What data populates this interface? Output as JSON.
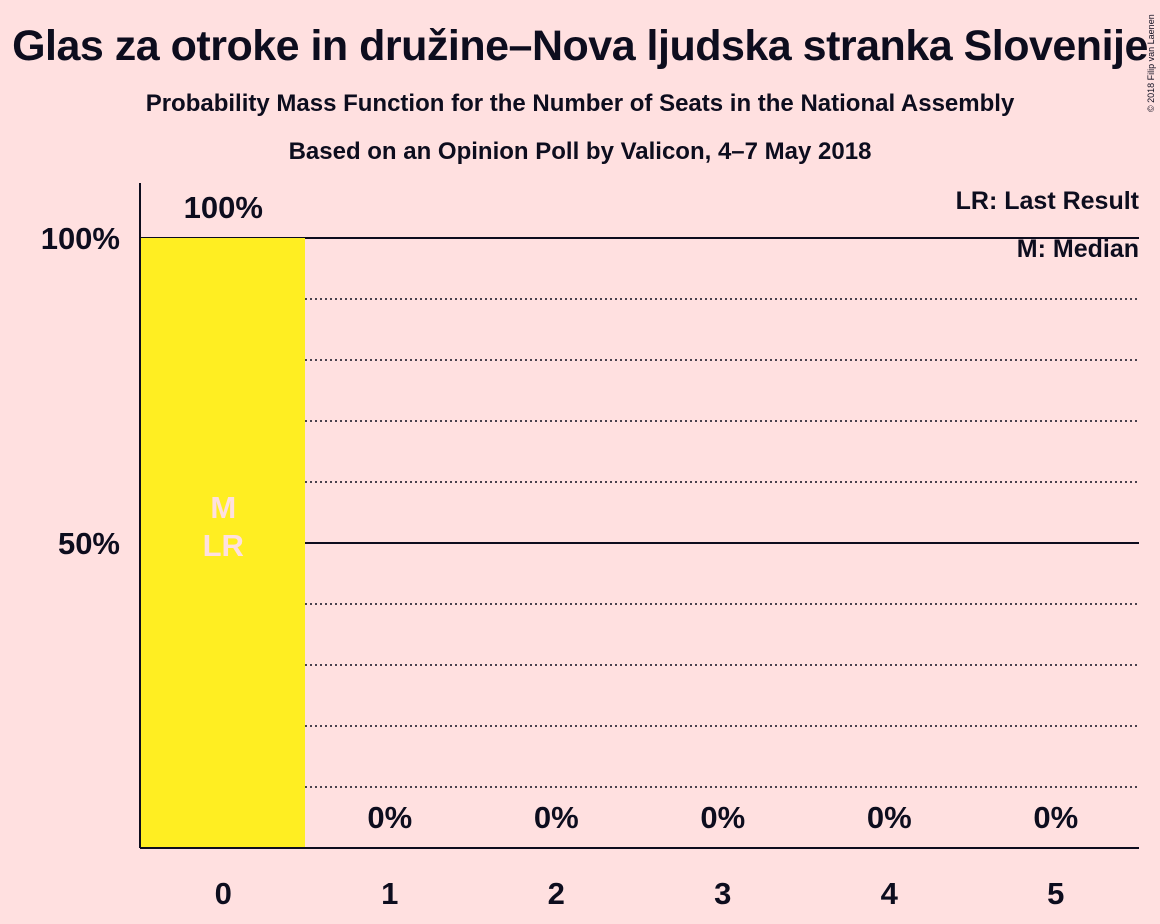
{
  "title": "Glas za otroke in družine–Nova ljudska stranka Slovenije",
  "subtitle": "Probability Mass Function for the Number of Seats in the National Assembly",
  "subtitle2": "Based on an Opinion Poll by Valicon, 4–7 May 2018",
  "copyright": "© 2018 Filip van Laenen",
  "legend": {
    "last_result": "LR: Last Result",
    "median": "M: Median"
  },
  "colors": {
    "background": "#FFE0E0",
    "bar": "#FFEE22",
    "text": "#0d0d1e"
  },
  "chart_data": {
    "type": "bar",
    "categories": [
      "0",
      "1",
      "2",
      "3",
      "4",
      "5"
    ],
    "values": [
      100,
      0,
      0,
      0,
      0,
      0
    ],
    "data_labels": [
      "100%",
      "0%",
      "0%",
      "0%",
      "0%",
      "0%"
    ],
    "ylim": [
      0,
      110
    ],
    "yticks": [
      {
        "value": 50,
        "label": "50%"
      },
      {
        "value": 100,
        "label": "100%"
      }
    ],
    "solid_gridlines": [
      50,
      100
    ],
    "dotted_gridlines": [
      10,
      20,
      30,
      40,
      60,
      70,
      80,
      90
    ],
    "median_seats": "0",
    "last_result_seats": "0",
    "bar_markers": [
      "M",
      "LR"
    ]
  }
}
